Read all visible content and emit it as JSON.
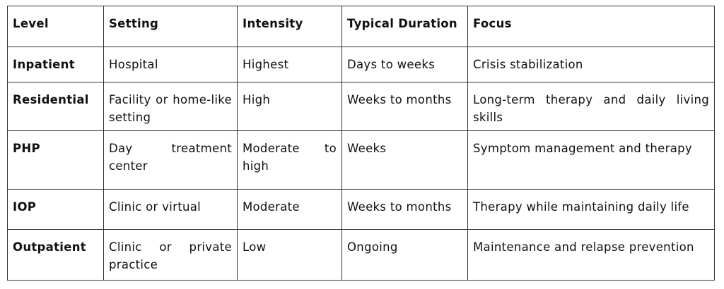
{
  "table": {
    "headers": [
      "Level",
      "Setting",
      "Intensity",
      "Typical Duration",
      "Focus"
    ],
    "rows": [
      [
        "Inpatient",
        "Hospital",
        "Highest",
        "Days to weeks",
        "Crisis stabilization"
      ],
      [
        "Residential",
        "Facility or home-like setting",
        "High",
        "Weeks to months",
        "Long-term therapy and daily living skills"
      ],
      [
        "PHP",
        "Day treatment center",
        "Moderate to high",
        "Weeks",
        "Symptom management and therapy"
      ],
      [
        "IOP",
        "Clinic or virtual",
        "Moderate",
        "Weeks to months",
        "Therapy while maintaining daily life"
      ],
      [
        "Outpatient",
        "Clinic or private practice",
        "Low",
        "Ongoing",
        "Maintenance and relapse prevention"
      ]
    ]
  }
}
